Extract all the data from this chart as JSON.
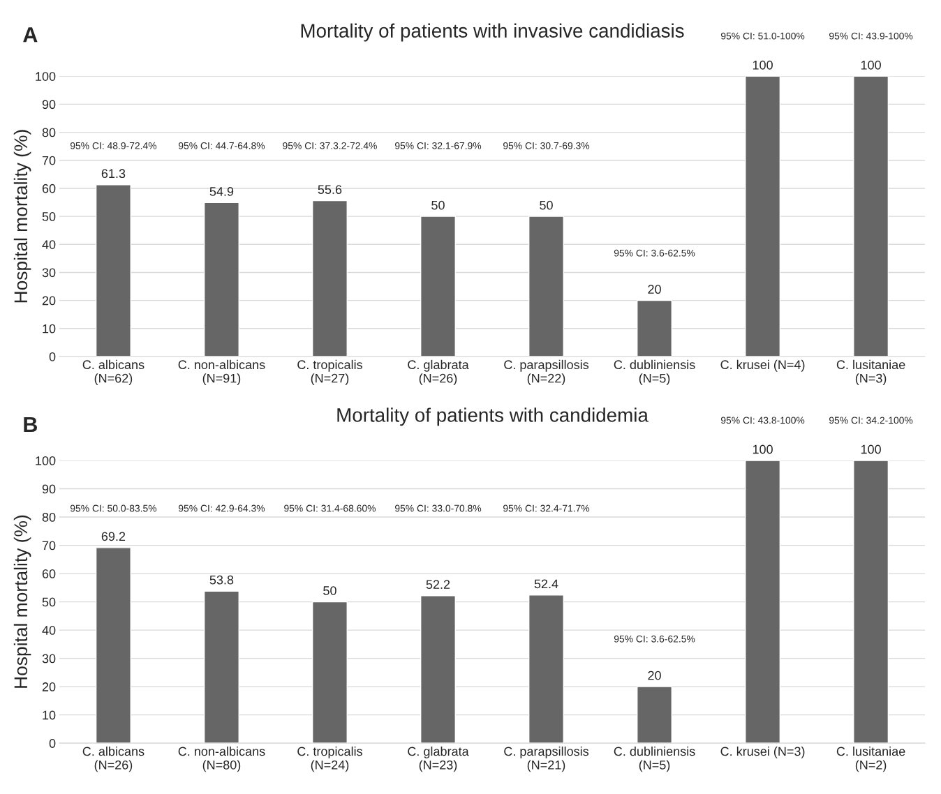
{
  "chart_data": [
    {
      "type": "bar",
      "title": "Mortality of patients with invasive candidiasis",
      "ylabel": "Hospital mortality (%)",
      "categories": [
        "C. albicans\n(N=62)",
        "C. non-albicans\n(N=91)",
        "C. tropicalis\n(N=27)",
        "C. glabrata\n(N=26)",
        "C. parapsillosis\n(N=22)",
        "C. dubliniensis\n(N=5)",
        "C. krusei (N=4)",
        "C. lusitaniae\n(N=3)"
      ],
      "values": [
        61.3,
        54.9,
        55.6,
        50,
        50,
        20,
        100,
        100
      ],
      "color": "#666666",
      "data_labels": true,
      "ylim": [
        0,
        100
      ],
      "yticks": [
        0,
        10,
        20,
        30,
        40,
        50,
        60,
        70,
        80,
        90,
        100
      ],
      "grid": "y",
      "annotations": [
        "A",
        "95% CI: 48.9-72.4%",
        "95% CI: 44.7-64.8%",
        "95% CI: 37.3.2-72.4%",
        "95% CI: 32.1-67.9%",
        "95% CI: 30.7-69.3%",
        "95% CI: 3.6-62.5%",
        "95% CI: 51.0-100%",
        "95% CI: 43.9-100%"
      ]
    },
    {
      "type": "bar",
      "title": "Mortality of patients with candidemia",
      "ylabel": "Hospital mortality (%)",
      "categories": [
        "C. albicans\n(N=26)",
        "C. non-albicans\n(N=80)",
        "C. tropicalis\n(N=24)",
        "C. glabrata\n(N=23)",
        "C. parapsillosis\n(N=21)",
        "C. dubliniensis\n(N=5)",
        "C. krusei (N=3)",
        "C. lusitaniae\n(N=2)"
      ],
      "values": [
        69.2,
        53.8,
        50,
        52.2,
        52.4,
        20,
        100,
        100
      ],
      "color": "#666666",
      "data_labels": true,
      "ylim": [
        0,
        100
      ],
      "yticks": [
        0,
        10,
        20,
        30,
        40,
        50,
        60,
        70,
        80,
        90,
        100
      ],
      "grid": "y",
      "annotations": [
        "B",
        "95% CI: 50.0-83.5%",
        "95% CI: 42.9-64.3%",
        "95% CI: 31.4-68.60%",
        "95% CI: 33.0-70.8%",
        "95% CI: 32.4-71.7%",
        "95% CI: 3.6-62.5%",
        "95% CI: 43.8-100%",
        "95% CI: 34.2-100%"
      ]
    }
  ]
}
